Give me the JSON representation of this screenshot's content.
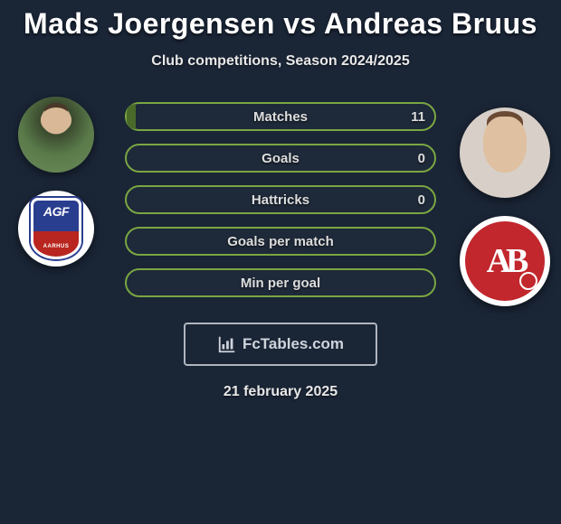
{
  "title": "Mads Joergensen vs Andreas Bruus",
  "subtitle": "Club competitions, Season 2024/2025",
  "footer_date": "21 february 2025",
  "watermark": "FcTables.com",
  "colors": {
    "background": "#1a2536",
    "bar_border": "#7aa642",
    "bar_fill": "#4a6a2a",
    "text": "#dddddd"
  },
  "players": {
    "left": {
      "name": "Mads Joergensen",
      "club_code": "AGF"
    },
    "right": {
      "name": "Andreas Bruus",
      "club_code": "AaB"
    }
  },
  "stats": [
    {
      "label": "Matches",
      "value": "11",
      "fill_pct": 3
    },
    {
      "label": "Goals",
      "value": "0",
      "fill_pct": 0
    },
    {
      "label": "Hattricks",
      "value": "0",
      "fill_pct": 0
    },
    {
      "label": "Goals per match",
      "value": "",
      "fill_pct": 0
    },
    {
      "label": "Min per goal",
      "value": "",
      "fill_pct": 0
    }
  ]
}
